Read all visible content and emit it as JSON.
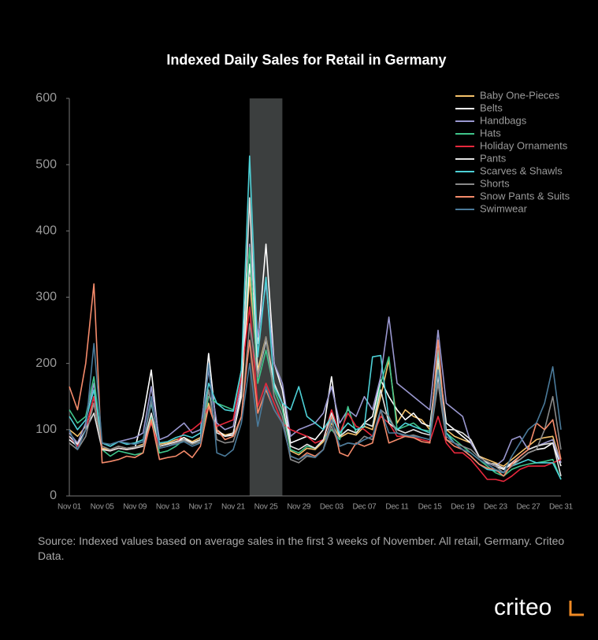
{
  "chart_data": {
    "type": "line",
    "title": "Indexed Daily Sales for Retail in Germany",
    "source": "Source: Indexed values based on average sales in the first 3 weeks of November. All retail, Germany. Criteo Data.",
    "logo": "criteo",
    "categories": [
      "Nov 01",
      null,
      null,
      null,
      "Nov 05",
      null,
      null,
      null,
      "Nov 09",
      null,
      null,
      null,
      "Nov 13",
      null,
      null,
      null,
      "Nov 17",
      null,
      null,
      null,
      "Nov 21",
      null,
      null,
      null,
      "Nov 25",
      null,
      null,
      null,
      "Nov 29",
      null,
      null,
      null,
      "Dec 03",
      null,
      null,
      null,
      "Dec 07",
      null,
      null,
      null,
      "Dec 11",
      null,
      null,
      null,
      "Dec 15",
      null,
      null,
      null,
      "Dec 19",
      null,
      null,
      null,
      "Dec 23",
      null,
      null,
      null,
      "Dec 27",
      null,
      null,
      null,
      "Dec 31"
    ],
    "highlight": [
      22,
      26
    ],
    "ylim": [
      0,
      600
    ],
    "yticks": [
      0,
      100,
      200,
      300,
      400,
      500,
      600
    ],
    "grid": false,
    "legend": "top-right",
    "series": [
      {
        "name": "Baby One-Pieces",
        "color": "#f5c26b",
        "values": [
          100,
          90,
          105,
          140,
          72,
          70,
          75,
          72,
          74,
          78,
          115,
          78,
          80,
          85,
          88,
          82,
          88,
          140,
          98,
          92,
          95,
          150,
          330,
          190,
          240,
          170,
          140,
          68,
          62,
          72,
          70,
          82,
          110,
          88,
          95,
          92,
          105,
          100,
          150,
          205,
          110,
          130,
          120,
          115,
          100,
          200,
          100,
          90,
          85,
          80,
          60,
          55,
          50,
          45,
          55,
          65,
          75,
          85,
          88,
          90,
          50
        ]
      },
      {
        "name": "Belts",
        "color": "#ffffff",
        "values": [
          85,
          75,
          100,
          150,
          70,
          68,
          72,
          70,
          72,
          120,
          190,
          75,
          78,
          82,
          88,
          80,
          85,
          215,
          100,
          90,
          92,
          160,
          350,
          230,
          380,
          200,
          160,
          80,
          85,
          90,
          85,
          100,
          180,
          90,
          100,
          95,
          110,
          120,
          175,
          150,
          130,
          115,
          125,
          110,
          105,
          210,
          110,
          100,
          90,
          80,
          60,
          50,
          45,
          40,
          48,
          55,
          65,
          70,
          72,
          80,
          45
        ]
      },
      {
        "name": "Handbags",
        "color": "#9a98d0",
        "values": [
          95,
          80,
          110,
          170,
          80,
          75,
          82,
          85,
          88,
          95,
          165,
          85,
          90,
          100,
          110,
          95,
          100,
          190,
          110,
          100,
          105,
          170,
          380,
          240,
          320,
          200,
          170,
          90,
          100,
          105,
          110,
          125,
          165,
          110,
          130,
          120,
          150,
          130,
          180,
          270,
          170,
          160,
          150,
          140,
          130,
          250,
          140,
          130,
          120,
          80,
          60,
          50,
          45,
          55,
          85,
          90,
          70,
          75,
          80,
          85,
          50
        ]
      },
      {
        "name": "Hats",
        "color": "#3fc48a",
        "values": [
          130,
          110,
          120,
          180,
          70,
          60,
          68,
          65,
          62,
          65,
          120,
          65,
          68,
          75,
          85,
          78,
          82,
          150,
          140,
          135,
          130,
          190,
          375,
          170,
          220,
          160,
          130,
          70,
          65,
          75,
          72,
          85,
          100,
          85,
          135,
          95,
          110,
          105,
          170,
          210,
          100,
          105,
          110,
          100,
          98,
          190,
          95,
          85,
          75,
          65,
          55,
          45,
          35,
          30,
          40,
          45,
          48,
          50,
          52,
          55,
          25
        ]
      },
      {
        "name": "Holiday Ornaments",
        "color": "#e8283c",
        "values": [
          90,
          75,
          100,
          150,
          70,
          68,
          72,
          70,
          72,
          75,
          110,
          72,
          75,
          80,
          95,
          100,
          110,
          135,
          105,
          110,
          115,
          180,
          285,
          135,
          170,
          140,
          110,
          100,
          95,
          90,
          80,
          85,
          130,
          95,
          125,
          105,
          100,
          90,
          120,
          110,
          90,
          90,
          88,
          85,
          82,
          120,
          80,
          65,
          65,
          55,
          40,
          25,
          25,
          22,
          30,
          40,
          45,
          45,
          45,
          50,
          55
        ]
      },
      {
        "name": "Pants",
        "color": "#e4e4e4",
        "values": [
          90,
          78,
          100,
          125,
          70,
          68,
          72,
          70,
          72,
          75,
          125,
          75,
          78,
          82,
          85,
          80,
          85,
          160,
          95,
          90,
          95,
          150,
          450,
          180,
          235,
          170,
          140,
          75,
          70,
          78,
          72,
          85,
          125,
          90,
          100,
          95,
          110,
          105,
          160,
          110,
          100,
          95,
          100,
          95,
          92,
          180,
          100,
          100,
          95,
          85,
          60,
          50,
          48,
          42,
          50,
          60,
          70,
          75,
          78,
          80,
          30
        ]
      },
      {
        "name": "Scarves & Shawls",
        "color": "#4dd0d6",
        "values": [
          120,
          100,
          115,
          160,
          80,
          75,
          82,
          78,
          80,
          85,
          140,
          80,
          82,
          88,
          92,
          88,
          95,
          170,
          140,
          130,
          128,
          190,
          513,
          210,
          330,
          165,
          140,
          130,
          165,
          120,
          110,
          100,
          120,
          95,
          110,
          100,
          105,
          210,
          212,
          115,
          100,
          110,
          105,
          100,
          95,
          220,
          95,
          80,
          70,
          60,
          48,
          40,
          38,
          35,
          45,
          50,
          55,
          50,
          50,
          50,
          25
        ]
      },
      {
        "name": "Shorts",
        "color": "#8a8a8a",
        "values": [
          80,
          70,
          90,
          140,
          75,
          70,
          75,
          72,
          74,
          76,
          145,
          72,
          75,
          80,
          84,
          78,
          82,
          160,
          85,
          80,
          82,
          120,
          260,
          180,
          240,
          150,
          120,
          55,
          50,
          60,
          58,
          70,
          105,
          75,
          80,
          78,
          90,
          85,
          130,
          120,
          95,
          90,
          92,
          88,
          85,
          170,
          85,
          80,
          75,
          70,
          58,
          52,
          45,
          35,
          45,
          55,
          65,
          70,
          100,
          150,
          70
        ]
      },
      {
        "name": "Snow Pants & Suits",
        "color": "#f58b6b",
        "values": [
          165,
          130,
          200,
          320,
          50,
          52,
          55,
          60,
          58,
          65,
          115,
          55,
          58,
          60,
          68,
          58,
          75,
          135,
          100,
          85,
          90,
          120,
          235,
          125,
          160,
          130,
          110,
          60,
          55,
          65,
          60,
          70,
          120,
          65,
          60,
          80,
          75,
          80,
          130,
          80,
          85,
          90,
          88,
          82,
          80,
          235,
          85,
          75,
          70,
          60,
          48,
          42,
          40,
          30,
          48,
          60,
          70,
          110,
          100,
          115,
          55
        ]
      },
      {
        "name": "Swimwear",
        "color": "#4a7a9a",
        "values": [
          100,
          70,
          100,
          230,
          80,
          78,
          82,
          80,
          78,
          82,
          150,
          72,
          75,
          78,
          82,
          75,
          80,
          200,
          65,
          60,
          70,
          110,
          200,
          105,
          165,
          130,
          110,
          60,
          55,
          62,
          58,
          70,
          115,
          75,
          80,
          78,
          85,
          90,
          130,
          95,
          95,
          92,
          90,
          88,
          85,
          190,
          90,
          80,
          70,
          65,
          55,
          48,
          40,
          35,
          60,
          80,
          100,
          110,
          140,
          195,
          100
        ]
      }
    ]
  }
}
